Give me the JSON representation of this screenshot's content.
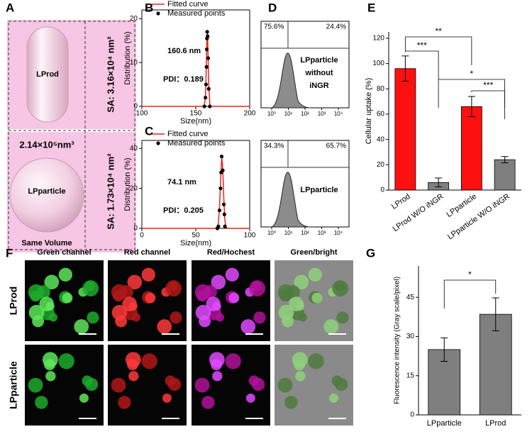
{
  "panel_labels": [
    "A",
    "B",
    "C",
    "D",
    "E",
    "F",
    "G"
  ],
  "panel_a": {
    "top": {
      "shape": "LProd",
      "sa": "SA: 3.16×10⁴ nm²"
    },
    "volume": "2.14×10⁵nm³",
    "bottom": {
      "shape": "LPparticle",
      "sa": "SA: 1.73×10⁴ nm²"
    },
    "note": "Same Volume"
  },
  "chart_data": [
    {
      "type": "line",
      "xlabel": "Size(nm)",
      "ylabel": "Distribution (%)",
      "xlim": [
        100,
        200
      ],
      "xticks": [
        100,
        150,
        200
      ],
      "ylim": [
        0,
        22
      ],
      "yticks": [
        0,
        10,
        20
      ],
      "annotations": [
        "160.6 nm",
        "PDI：0.189"
      ],
      "series": [
        {
          "name": "Fitted curve",
          "kind": "line",
          "color": "#e8241c",
          "x": [
            100,
            157,
            158,
            159,
            159.5,
            160,
            160.3,
            160.6,
            161,
            161.5,
            162,
            163,
            164,
            200
          ],
          "values": [
            0,
            0,
            0.2,
            2.5,
            6.5,
            12,
            15.5,
            17,
            15.5,
            10.5,
            5,
            0.6,
            0,
            0
          ]
        },
        {
          "name": "Measured points",
          "kind": "scatter",
          "color": "#000000",
          "x": [
            158,
            159,
            159.5,
            160,
            160.2,
            160.4,
            160.6,
            161,
            161.5,
            162,
            163
          ],
          "values": [
            0,
            2,
            5,
            9,
            13,
            15.5,
            17,
            16,
            11,
            4,
            0
          ]
        }
      ]
    },
    {
      "type": "line",
      "xlabel": "Size(nm)",
      "ylabel": "Distribution (%)",
      "xlim": [
        0,
        100
      ],
      "xticks": [
        0,
        50,
        100
      ],
      "ylim": [
        0,
        44
      ],
      "yticks": [
        0,
        20,
        40
      ],
      "annotations": [
        "74.1 nm",
        "PDI：0.205"
      ],
      "series": [
        {
          "name": "Fitted curve",
          "kind": "line",
          "color": "#e8241c",
          "x": [
            0,
            68,
            70,
            71,
            72,
            73,
            74.1,
            75,
            76,
            77,
            78,
            80,
            100
          ],
          "values": [
            0,
            0,
            0.5,
            3,
            10,
            24,
            36,
            30,
            15,
            4,
            0.5,
            0,
            0
          ]
        },
        {
          "name": "Measured points",
          "kind": "scatter",
          "color": "#000000",
          "x": [
            70,
            71,
            72,
            73,
            73.5,
            74,
            75,
            76,
            76.5,
            77
          ],
          "values": [
            0,
            1,
            9,
            20,
            28,
            36,
            29,
            12,
            7,
            1
          ]
        }
      ]
    },
    {
      "type": "bar",
      "ylabel": "Cellular uptake (%)",
      "categories": [
        "LProd",
        "LProd W/O iNGR",
        "LPparticle",
        "LPparticle W/O iNGR"
      ],
      "values": [
        96,
        6,
        66,
        24
      ],
      "errors": [
        10,
        3.5,
        8,
        2.5
      ],
      "colors": [
        "#ff1010",
        "#7f7f7f",
        "#ff1010",
        "#7f7f7f"
      ],
      "ylim": [
        0,
        125
      ],
      "yticks": [
        0,
        20,
        40,
        60,
        80,
        100,
        120
      ],
      "significance": [
        {
          "label": "***",
          "between": [
            0,
            1
          ]
        },
        {
          "label": "**",
          "between": [
            0,
            2
          ]
        },
        {
          "label": "*",
          "between": [
            1,
            3
          ]
        },
        {
          "label": "***",
          "between": [
            2,
            3
          ]
        }
      ]
    },
    {
      "type": "bar",
      "ylabel": "Fluorescence intensity (Gray scale/pixel)",
      "categories": [
        "LPparticle",
        "LProd"
      ],
      "values": [
        25,
        38.5
      ],
      "errors": [
        4.5,
        6.3
      ],
      "colors": [
        "#7f7f7f",
        "#7f7f7f"
      ],
      "ylim": [
        0,
        57
      ],
      "yticks": [
        0,
        15,
        30,
        45
      ],
      "significance": [
        {
          "label": "*",
          "between": [
            0,
            1
          ]
        }
      ]
    }
  ],
  "panel_d": [
    {
      "left": "75.6%",
      "right": "24.4%",
      "label": [
        "LPparticle",
        "without",
        "iNGR"
      ],
      "xticks": [
        "10⁰",
        "10¹",
        "10²",
        "10³",
        "10⁴"
      ]
    },
    {
      "left": "34.3%",
      "right": "65.7%",
      "label": [
        "LPparticle"
      ],
      "xticks": [
        "10⁰",
        "10¹",
        "10²",
        "10³",
        "10⁴"
      ]
    }
  ],
  "panel_f": {
    "columns": [
      "Green channel",
      "Red channel",
      "Red/Hochest",
      "Green/bright"
    ],
    "rows": [
      "LProd",
      "LPparticle"
    ]
  }
}
